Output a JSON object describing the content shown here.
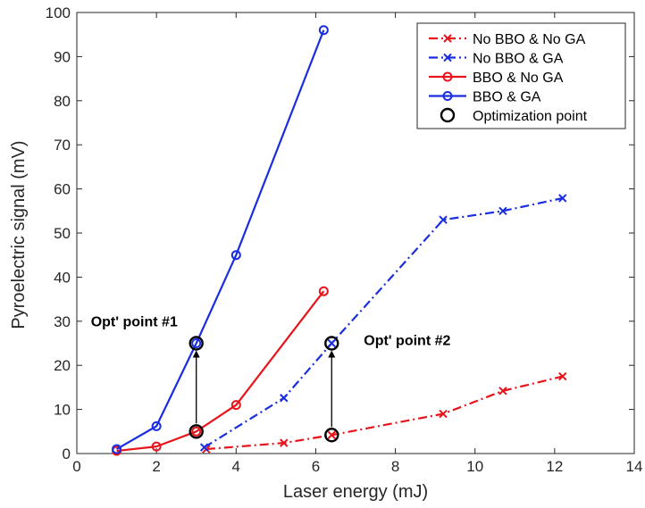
{
  "chart_data": {
    "type": "line",
    "xlabel": "Laser energy (mJ)",
    "ylabel": "Pyroelectric signal (mV)",
    "xlim": [
      0,
      14
    ],
    "ylim": [
      0,
      100
    ],
    "x_ticks": [
      "0",
      "2",
      "4",
      "6",
      "8",
      "10",
      "12",
      "14"
    ],
    "y_ticks": [
      "0",
      "10",
      "20",
      "30",
      "40",
      "50",
      "60",
      "70",
      "80",
      "90",
      "100"
    ],
    "grid": false,
    "legend_position": "top-right",
    "series": [
      {
        "name": "No BBO & No GA",
        "color": "#e8141b",
        "line_style": "dash-dot",
        "marker": "x",
        "x": [
          3.25,
          5.2,
          6.4,
          9.2,
          10.7,
          12.2
        ],
        "y": [
          1.0,
          2.4,
          4.2,
          9.0,
          14.2,
          17.5
        ]
      },
      {
        "name": "No BBO & GA",
        "color": "#1a2ee0",
        "line_style": "dash-dot",
        "marker": "x",
        "x": [
          3.2,
          5.2,
          6.4,
          9.2,
          10.7,
          12.2
        ],
        "y": [
          1.4,
          12.6,
          25.0,
          53.0,
          55.0,
          57.9
        ]
      },
      {
        "name": "BBO & No GA",
        "color": "#e8141b",
        "line_style": "solid",
        "marker": "circle",
        "x": [
          1.0,
          2.0,
          3.0,
          4.0,
          6.2
        ],
        "y": [
          0.6,
          1.6,
          5.0,
          11.0,
          36.8
        ]
      },
      {
        "name": "BBO & GA",
        "color": "#1a2ee0",
        "line_style": "solid",
        "marker": "circle",
        "x": [
          1.0,
          2.0,
          3.0,
          4.0,
          6.2
        ],
        "y": [
          1.0,
          6.2,
          25.0,
          45.0,
          96.0
        ]
      }
    ],
    "optimization_points": {
      "name": "Optimization point",
      "points": [
        {
          "x": 3.0,
          "y": 5.0
        },
        {
          "x": 3.0,
          "y": 25.0
        },
        {
          "x": 6.4,
          "y": 4.2
        },
        {
          "x": 6.4,
          "y": 25.0
        }
      ]
    },
    "annotations": [
      {
        "text": "Opt' point #1",
        "arrow_from": {
          "x": 3.0,
          "y": 5.0
        },
        "arrow_to": {
          "x": 3.0,
          "y": 25.0
        }
      },
      {
        "text": "Opt' point #2",
        "arrow_from": {
          "x": 6.4,
          "y": 4.2
        },
        "arrow_to": {
          "x": 6.4,
          "y": 25.0
        }
      }
    ]
  }
}
